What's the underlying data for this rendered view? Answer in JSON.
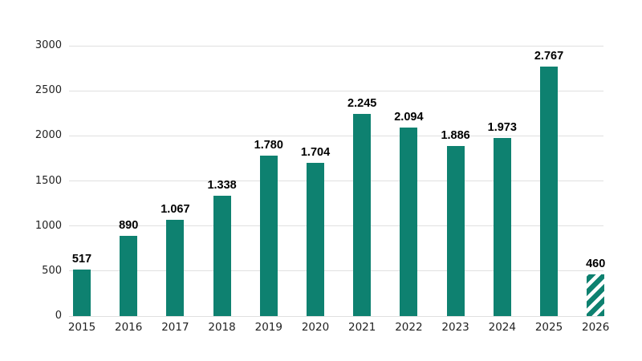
{
  "chart_data": {
    "type": "bar",
    "title": "",
    "xlabel": "",
    "ylabel": "",
    "categories": [
      "2015",
      "2016",
      "2017",
      "2018",
      "2019",
      "2020",
      "2021",
      "2022",
      "2023",
      "2024",
      "2025",
      "2026"
    ],
    "values": [
      517,
      890,
      1067,
      1338,
      1780,
      1704,
      2245,
      2094,
      1886,
      1973,
      2767,
      460
    ],
    "value_labels": [
      "517",
      "890",
      "1.067",
      "1.338",
      "1.780",
      "1.704",
      "2.245",
      "2.094",
      "1.886",
      "1.973",
      "2.767",
      "460"
    ],
    "ylim": [
      0,
      3000
    ],
    "yticks": [
      0,
      500,
      1000,
      1500,
      2000,
      2500,
      3000
    ],
    "grid": true,
    "legend": "none",
    "bar_color": "#0e8170",
    "gridline_color": "#e0e0e0",
    "label_color": "#222222",
    "value_label_color": "#000000",
    "forecast_bar_index": 11,
    "forecast_bar_style": "diagonal-hatch"
  }
}
